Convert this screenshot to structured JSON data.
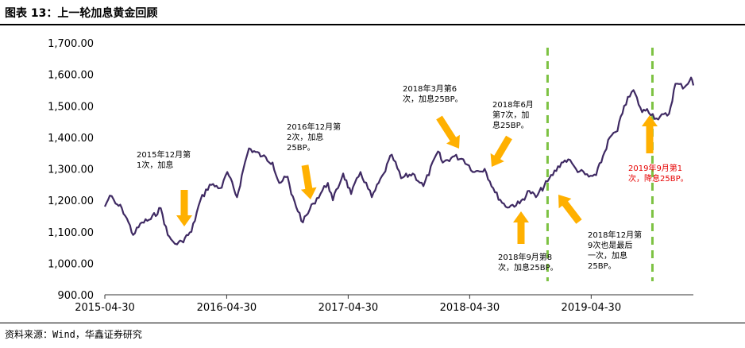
{
  "header": {
    "title": "图表 13：上一轮加息黄金回顾"
  },
  "footer": {
    "source": "资料来源：Wind，华鑫证券研究"
  },
  "colors": {
    "line": "#3f2a63",
    "arrow": "#ffb000",
    "dashed": "#7dc242",
    "red_text": "#e60000"
  },
  "chart_data": {
    "type": "line",
    "title": "",
    "xlabel": "",
    "ylabel": "",
    "ylim": [
      900,
      1700
    ],
    "yticks": [
      900,
      1000,
      1100,
      1200,
      1300,
      1400,
      1500,
      1600,
      1700
    ],
    "ytick_labels": [
      "900.00",
      "1,000.00",
      "1,100.00",
      "1,200.00",
      "1,300.00",
      "1,400.00",
      "1,500.00",
      "1,600.00",
      "1,700.00"
    ],
    "xlim": [
      "2015-04-30",
      "2020-03-02"
    ],
    "xticks": [
      "2015-04-30",
      "2016-04-30",
      "2017-04-30",
      "2018-04-30",
      "2019-04-30"
    ],
    "grid": false,
    "legend": "none",
    "series": [
      {
        "x": [
          "2015-04-30",
          "2015-05-15",
          "2015-06-01",
          "2015-06-20",
          "2015-07-10",
          "2015-07-24",
          "2015-08-20",
          "2015-09-15",
          "2015-10-15",
          "2015-11-05",
          "2015-11-20",
          "2015-12-03",
          "2015-12-17",
          "2016-01-15",
          "2016-02-11",
          "2016-03-10",
          "2016-04-15",
          "2016-05-02",
          "2016-05-31",
          "2016-06-24",
          "2016-07-06",
          "2016-08-15",
          "2016-09-15",
          "2016-10-05",
          "2016-10-30",
          "2016-11-10",
          "2016-12-15",
          "2017-01-15",
          "2017-02-28",
          "2017-03-15",
          "2017-04-15",
          "2017-05-09",
          "2017-06-06",
          "2017-07-10",
          "2017-08-15",
          "2017-09-08",
          "2017-10-06",
          "2017-11-10",
          "2017-12-12",
          "2018-01-25",
          "2018-02-08",
          "2018-03-15",
          "2018-04-11",
          "2018-05-15",
          "2018-06-14",
          "2018-07-15",
          "2018-08-16",
          "2018-09-27",
          "2018-10-26",
          "2018-11-15",
          "2018-12-20",
          "2019-01-31",
          "2019-02-20",
          "2019-03-15",
          "2019-04-23",
          "2019-05-15",
          "2019-06-25",
          "2019-07-18",
          "2019-08-07",
          "2019-09-04",
          "2019-09-30",
          "2019-10-15",
          "2019-11-12",
          "2019-12-20",
          "2020-01-08",
          "2020-02-05",
          "2020-02-24",
          "2020-03-02"
        ],
        "values": [
          1180,
          1215,
          1190,
          1175,
          1130,
          1090,
          1130,
          1140,
          1175,
          1090,
          1070,
          1060,
          1070,
          1100,
          1200,
          1250,
          1240,
          1290,
          1210,
          1320,
          1365,
          1340,
          1320,
          1255,
          1275,
          1220,
          1130,
          1190,
          1255,
          1200,
          1285,
          1220,
          1290,
          1210,
          1285,
          1345,
          1270,
          1285,
          1245,
          1355,
          1320,
          1340,
          1330,
          1290,
          1300,
          1225,
          1180,
          1190,
          1230,
          1210,
          1260,
          1320,
          1330,
          1300,
          1275,
          1280,
          1400,
          1420,
          1500,
          1550,
          1480,
          1490,
          1460,
          1475,
          1570,
          1560,
          1590,
          1565
        ]
      }
    ],
    "annotations": [
      {
        "text": [
          "2015年12月第",
          "1次，加息"
        ],
        "color": "black"
      },
      {
        "text": [
          "2016年12月第",
          "2次，加息",
          "25BP。"
        ],
        "color": "black"
      },
      {
        "text": [
          "2018年3月第6",
          "次，加息25BP。"
        ],
        "color": "black"
      },
      {
        "text": [
          "2018年6月",
          "第7次，加",
          "息25BP。"
        ],
        "color": "black"
      },
      {
        "text": [
          "2018年9月第8",
          "次，加息25BP。"
        ],
        "color": "black"
      },
      {
        "text": [
          "2018年12月第",
          "9次也是最后",
          "一次，加息",
          "25BP。"
        ],
        "color": "black"
      },
      {
        "text": [
          "2019年9月第1",
          "次，降息25BP。"
        ],
        "color": "red"
      }
    ],
    "reference_lines": [
      "2018-12-20",
      "2019-10-31"
    ]
  }
}
